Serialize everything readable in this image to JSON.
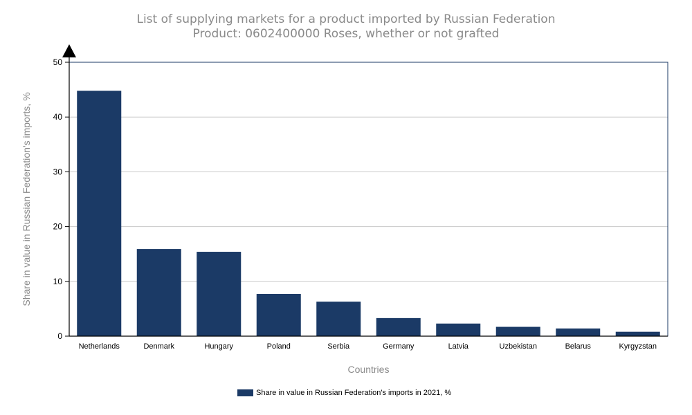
{
  "title": "List of supplying markets for a product imported by Russian Federation",
  "subtitle": "Product: 0602400000 Roses, whether or not grafted",
  "colors": {
    "bar": "#1b3a66",
    "title": "#8a8a8a",
    "grid": "#c8c8c8"
  },
  "chart_data": {
    "type": "bar",
    "title": "List of supplying markets for a product imported by Russian Federation",
    "subtitle": "Product: 0602400000 Roses, whether or not grafted",
    "xlabel": "Countries",
    "ylabel": "Share in value in Russian Federation's imports, %",
    "categories": [
      "Netherlands",
      "Denmark",
      "Hungary",
      "Poland",
      "Serbia",
      "Germany",
      "Latvia",
      "Uzbekistan",
      "Belarus",
      "Kyrgyzstan"
    ],
    "series": [
      {
        "name": "Share in value in Russian Federation's imports in 2021, %",
        "values": [
          44.8,
          15.9,
          15.4,
          7.7,
          6.3,
          3.3,
          2.3,
          1.7,
          1.4,
          0.8
        ]
      }
    ],
    "ylim": [
      0,
      50
    ],
    "yticks": [
      0,
      10,
      20,
      30,
      40,
      50
    ],
    "grid": true,
    "legend_position": "bottom-center"
  }
}
